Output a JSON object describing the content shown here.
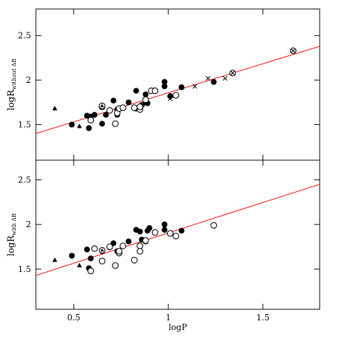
{
  "chart_data": [
    {
      "type": "scatter",
      "ylabel": {
        "text": "logR",
        "subscript": "without ΔB"
      },
      "xlim": [
        0.3,
        1.8
      ],
      "ylim": [
        1.1,
        2.8
      ],
      "xticks": [
        0.5,
        1,
        1.5
      ],
      "yticks": [
        1.5,
        2,
        2.5
      ],
      "show_xtick_labels": false,
      "fit": {
        "color": "#ff0000",
        "x": [
          0.3,
          1.8
        ],
        "y": [
          1.4,
          2.38
        ]
      },
      "series": [
        {
          "marker": "filled-circle",
          "color": "#000000",
          "x": [
            0.49,
            0.57,
            0.58,
            0.59,
            0.61,
            0.65,
            0.67,
            0.71,
            0.73,
            0.73,
            0.79,
            0.83,
            0.83,
            0.85,
            0.86,
            0.88,
            0.88,
            0.89,
            0.98,
            0.98,
            1.01,
            1.07,
            1.24
          ],
          "y": [
            1.5,
            1.6,
            1.46,
            1.59,
            1.61,
            1.51,
            1.61,
            1.77,
            1.67,
            1.61,
            1.75,
            1.68,
            1.88,
            1.67,
            1.72,
            1.75,
            1.84,
            1.74,
            1.93,
            1.98,
            1.82,
            1.92,
            1.98
          ]
        },
        {
          "marker": "open-circle",
          "color": "#000000",
          "x": [
            0.59,
            0.65,
            0.69,
            0.73,
            0.74,
            0.76,
            0.82,
            0.85,
            0.85,
            0.88,
            0.91,
            0.93,
            1.04,
            0.72
          ],
          "y": [
            1.55,
            1.7,
            1.66,
            1.63,
            1.68,
            1.69,
            1.69,
            1.67,
            1.7,
            1.78,
            1.88,
            1.88,
            1.83,
            1.51
          ]
        },
        {
          "marker": "triangle",
          "color": "#000000",
          "x": [
            0.4,
            0.53
          ],
          "y": [
            1.68,
            1.48
          ]
        },
        {
          "marker": "triangle-circle",
          "color": "#000000",
          "x": [
            0.65
          ],
          "y": [
            1.71
          ]
        },
        {
          "marker": "cross",
          "color": "#000000",
          "x": [
            1.01,
            1.14,
            1.21,
            1.3
          ],
          "y": [
            1.79,
            1.93,
            2.02,
            2.02
          ]
        },
        {
          "marker": "circle-cross",
          "color": "#000000",
          "x": [
            1.34,
            1.66
          ],
          "y": [
            2.08,
            2.33
          ]
        }
      ]
    },
    {
      "type": "scatter",
      "xlabel": "logP",
      "ylabel": {
        "text": "logR",
        "subscript": "with ΔB"
      },
      "xlim": [
        0.3,
        1.8
      ],
      "ylim": [
        1.05,
        2.72
      ],
      "xticks": [
        0.5,
        1,
        1.5
      ],
      "yticks": [
        1.5,
        2,
        2.5
      ],
      "show_xtick_labels": true,
      "fit": {
        "color": "#ff0000",
        "x": [
          0.3,
          1.8
        ],
        "y": [
          1.43,
          2.45
        ]
      },
      "series": [
        {
          "marker": "filled-circle",
          "color": "#000000",
          "x": [
            0.49,
            0.57,
            0.58,
            0.59,
            0.65,
            0.71,
            0.73,
            0.79,
            0.83,
            0.85,
            0.86,
            0.88,
            0.89,
            0.9,
            0.98,
            0.98,
            1.07
          ],
          "y": [
            1.65,
            1.72,
            1.51,
            1.62,
            1.7,
            1.79,
            1.7,
            1.81,
            1.94,
            1.92,
            1.83,
            1.81,
            1.93,
            1.96,
            1.94,
            2.0,
            1.93
          ]
        },
        {
          "marker": "open-circle",
          "color": "#000000",
          "x": [
            0.59,
            0.65,
            0.72,
            0.69,
            0.74,
            0.76,
            0.82,
            0.85,
            0.85,
            0.88,
            0.93,
            1.01,
            1.04,
            1.24,
            0.61,
            0.74
          ],
          "y": [
            1.48,
            1.59,
            1.54,
            1.75,
            1.68,
            1.76,
            1.6,
            1.7,
            1.76,
            1.82,
            1.91,
            1.9,
            1.87,
            1.99,
            1.73,
            1.7
          ]
        },
        {
          "marker": "triangle",
          "color": "#000000",
          "x": [
            0.4,
            0.53
          ],
          "y": [
            1.6,
            1.54
          ]
        },
        {
          "marker": "triangle-circle",
          "color": "#000000",
          "x": [
            0.65
          ],
          "y": [
            1.71
          ]
        }
      ]
    }
  ]
}
